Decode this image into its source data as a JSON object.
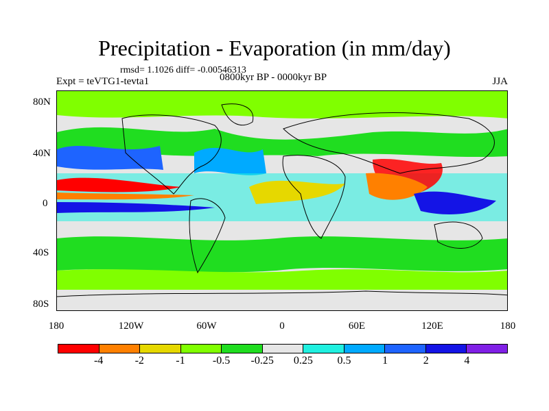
{
  "title": "Precipitation - Evaporation (in mm/day)",
  "stats": "rmsd= 1.1026  diff= -0.00546313",
  "experiment": "Expt = teVTG1-tevta1",
  "period": "0800kyr BP - 0000kyr BP",
  "season": "JJA",
  "lat_labels": [
    "80N",
    "40N",
    "0",
    "40S",
    "80S"
  ],
  "lon_labels": [
    "180",
    "120W",
    "60W",
    "0",
    "60E",
    "120E",
    "180"
  ],
  "colorbar": {
    "colors": [
      "#ff0000",
      "#ff8000",
      "#e6d800",
      "#80ff00",
      "#20dd20",
      "#e6e6e6",
      "#20f0e0",
      "#00aaff",
      "#1e64ff",
      "#1414e6",
      "#8020e6"
    ],
    "labels": [
      "-4",
      "-2",
      "-1",
      "-0.5",
      "-0.25",
      "0.25",
      "0.5",
      "1",
      "2",
      "4"
    ]
  }
}
